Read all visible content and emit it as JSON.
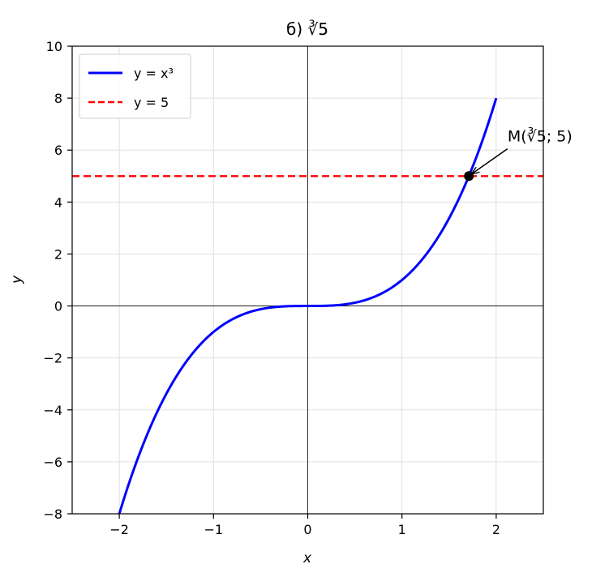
{
  "chart_data": {
    "type": "line",
    "title": "б) ∛5",
    "xlabel": "x",
    "ylabel": "y",
    "xlim": [
      -2.5,
      2.5
    ],
    "ylim": [
      -8,
      10
    ],
    "xticks": [
      -2,
      -1,
      0,
      1,
      2
    ],
    "xtick_labels": [
      "−2",
      "−1",
      "0",
      "1",
      "2"
    ],
    "yticks": [
      -8,
      -6,
      -4,
      -2,
      0,
      2,
      4,
      6,
      8,
      10
    ],
    "ytick_labels": [
      "−8",
      "−6",
      "−4",
      "−2",
      "0",
      "2",
      "4",
      "6",
      "8",
      "10"
    ],
    "grid": true,
    "legend_position": "top-left",
    "series": [
      {
        "name": "y = x³",
        "kind": "curve",
        "color": "#0000ff",
        "style": "solid",
        "x": [
          -2.0,
          -1.75,
          -1.5,
          -1.25,
          -1.0,
          -0.75,
          -0.5,
          -0.25,
          0.0,
          0.25,
          0.5,
          0.75,
          1.0,
          1.25,
          1.5,
          1.75,
          2.0
        ],
        "y": [
          -8.0,
          -5.359,
          -3.375,
          -1.953,
          -1.0,
          -0.422,
          -0.125,
          -0.016,
          0.0,
          0.016,
          0.125,
          0.422,
          1.0,
          1.953,
          3.375,
          5.359,
          8.0
        ]
      },
      {
        "name": "y = 5",
        "kind": "hline",
        "color": "#ff0000",
        "style": "dashed",
        "y": 5
      }
    ],
    "point": {
      "x": 1.71,
      "y": 5,
      "color": "#000000"
    },
    "annotation": {
      "text": "M(∛5; 5)",
      "x": 1.71,
      "y": 5,
      "text_x": 2.12,
      "text_y": 6.3
    }
  }
}
